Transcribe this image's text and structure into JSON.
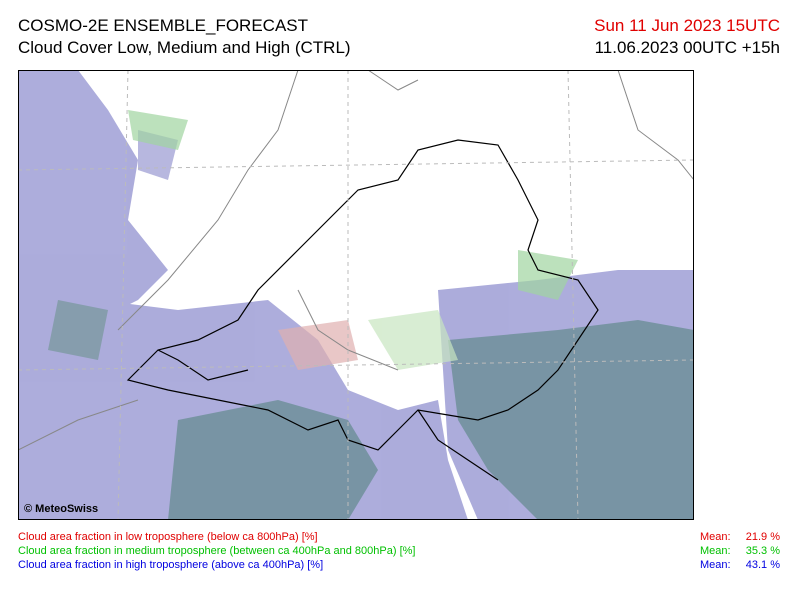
{
  "header": {
    "title": "COSMO-2E ENSEMBLE_FORECAST",
    "subtitle": "Cloud Cover Low, Medium and High (CTRL)",
    "valid_time": "Sun 11 Jun 2023 15UTC",
    "run_time": "11.06.2023 00UTC +15h"
  },
  "map": {
    "credit": "© MeteoSwiss"
  },
  "legend": {
    "rows": [
      {
        "label": "Cloud area fraction in low troposphere (below ca 800hPa) [%]",
        "mean_label": "Mean:",
        "mean": "21.9 %"
      },
      {
        "label": "Cloud area fraction in medium troposphere (between ca 400hPa and 800hPa) [%]",
        "mean_label": "Mean:",
        "mean": "35.3 %"
      },
      {
        "label": "Cloud area fraction in high troposphere (above ca 400hPa) [%]",
        "mean_label": "Mean:",
        "mean": "43.1 %"
      }
    ]
  }
}
